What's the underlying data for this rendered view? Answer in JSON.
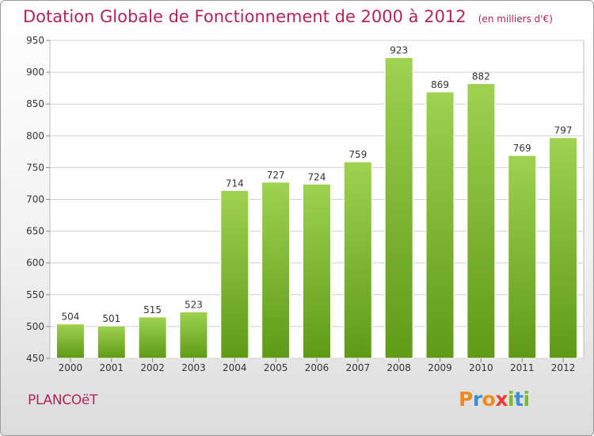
{
  "header": {
    "title": "Dotation Globale de Fonctionnement de 2000 à 2012",
    "unit": "(en milliers d'€)"
  },
  "footer": {
    "commune": "PLANCOëT",
    "logo": {
      "letters": [
        "P",
        "r",
        "o",
        "x",
        "i",
        "t",
        "i"
      ],
      "colors": [
        "#f08a1c",
        "#3a8fd6",
        "#f08a1c",
        "#e63c3c",
        "#7ab82e",
        "#3a8fd6",
        "#7ab82e"
      ]
    }
  },
  "colors": {
    "title": "#b0245a",
    "bar_light": "#9ed24f",
    "bar_dark": "#5f9a16",
    "grid": "#cfcfcf",
    "axis_text": "#333333"
  },
  "chart_data": {
    "type": "bar",
    "title": "Dotation Globale de Fonctionnement de 2000 à 2012",
    "categories": [
      "2000",
      "2001",
      "2002",
      "2003",
      "2004",
      "2005",
      "2006",
      "2007",
      "2008",
      "2009",
      "2010",
      "2011",
      "2012"
    ],
    "values": [
      504,
      501,
      515,
      523,
      714,
      727,
      724,
      759,
      923,
      869,
      882,
      769,
      797
    ],
    "ylim": [
      450,
      950
    ],
    "yticks": [
      450,
      500,
      550,
      600,
      650,
      700,
      750,
      800,
      850,
      900,
      950
    ],
    "grid": true,
    "data_labels": true,
    "xlabel": "",
    "ylabel": ""
  }
}
